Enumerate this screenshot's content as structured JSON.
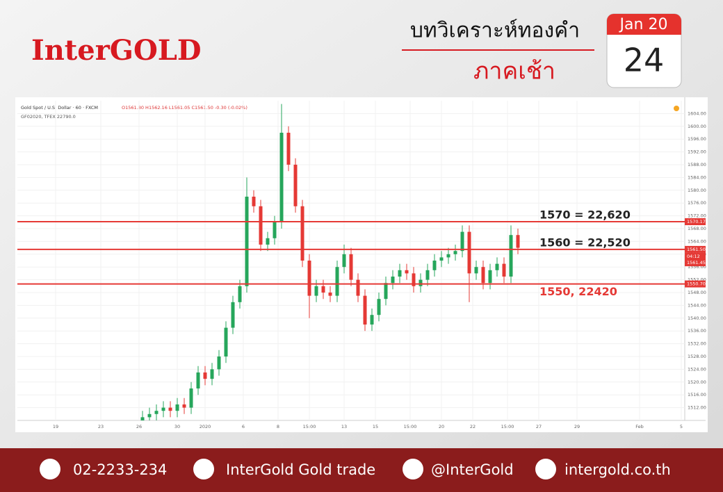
{
  "header": {
    "brand": "InterGOLD",
    "title": "บทวิเคราะห์ทองคำ",
    "subtitle": "ภาคเช้า",
    "month": "Jan 20",
    "day": "24"
  },
  "chart_data": {
    "type": "candlestick",
    "title": "Gold Spot / U.S. Dollar · 60 · FXCM",
    "quote": "O1561.80 H1562.16 L1561.05 C1561.50 -0.30 (-0.02%)",
    "subtitle": "GF02020, TFEX 22790.0",
    "x": [
      36,
      38,
      40,
      42,
      44,
      46,
      48,
      50,
      52,
      54,
      56,
      58,
      60,
      62,
      64,
      66,
      68,
      70,
      72,
      74,
      76,
      78,
      80,
      82,
      84,
      86,
      88,
      90,
      92,
      94,
      96,
      98,
      100,
      102,
      104,
      106,
      108,
      110,
      112,
      114,
      116,
      118,
      120,
      122,
      124,
      126,
      128,
      130,
      132,
      134,
      136,
      138,
      140,
      142,
      144
    ],
    "open": [
      1507,
      1509,
      1510,
      1511,
      1512,
      1511,
      1513,
      1512,
      1518,
      1523,
      1521,
      1524,
      1528,
      1537,
      1545,
      1550,
      1578,
      1575,
      1563,
      1565,
      1570,
      1598,
      1588,
      1575,
      1558,
      1547,
      1550,
      1548,
      1547,
      1556,
      1560,
      1552,
      1547,
      1538,
      1541,
      1546,
      1551,
      1553,
      1555,
      1554,
      1550,
      1552,
      1555,
      1558,
      1559,
      1560,
      1561,
      1567,
      1554,
      1556,
      1551,
      1555,
      1557,
      1553,
      1566
    ],
    "high": [
      1511,
      1512,
      1513,
      1514,
      1514,
      1515,
      1515,
      1520,
      1525,
      1525,
      1526,
      1530,
      1539,
      1547,
      1552,
      1584,
      1580,
      1577,
      1567,
      1572,
      1607,
      1600,
      1590,
      1577,
      1560,
      1552,
      1552,
      1550,
      1558,
      1563,
      1562,
      1554,
      1549,
      1543,
      1548,
      1553,
      1555,
      1557,
      1557,
      1556,
      1554,
      1557,
      1560,
      1561,
      1562,
      1563,
      1569,
      1569,
      1558,
      1558,
      1557,
      1559,
      1559,
      1569,
      1568
    ],
    "low": [
      1505,
      1507,
      1508,
      1509,
      1509,
      1509,
      1510,
      1510,
      1516,
      1519,
      1519,
      1522,
      1526,
      1535,
      1543,
      1548,
      1573,
      1561,
      1561,
      1563,
      1568,
      1586,
      1573,
      1556,
      1540,
      1545,
      1546,
      1545,
      1545,
      1554,
      1550,
      1545,
      1536,
      1536,
      1539,
      1544,
      1549,
      1551,
      1552,
      1548,
      1548,
      1550,
      1553,
      1556,
      1557,
      1558,
      1559,
      1545,
      1552,
      1549,
      1549,
      1553,
      1551,
      1551,
      1560
    ],
    "close": [
      1509,
      1510,
      1511,
      1512,
      1511,
      1513,
      1512,
      1518,
      1523,
      1521,
      1524,
      1528,
      1537,
      1545,
      1550,
      1578,
      1575,
      1563,
      1565,
      1570,
      1598,
      1588,
      1575,
      1558,
      1547,
      1550,
      1548,
      1547,
      1556,
      1560,
      1552,
      1547,
      1538,
      1541,
      1546,
      1551,
      1553,
      1555,
      1554,
      1550,
      1552,
      1555,
      1558,
      1559,
      1560,
      1561,
      1567,
      1554,
      1556,
      1551,
      1555,
      1557,
      1553,
      1566,
      1562
    ],
    "up_color": "#26a65b",
    "down_color": "#e53935",
    "xlim": [
      0,
      192
    ],
    "xticks": [
      {
        "value": 11,
        "label": "19"
      },
      {
        "value": 24,
        "label": "23"
      },
      {
        "value": 35,
        "label": "26"
      },
      {
        "value": 46,
        "label": "30"
      },
      {
        "value": 54,
        "label": "2020"
      },
      {
        "value": 65,
        "label": "6"
      },
      {
        "value": 75,
        "label": "8"
      },
      {
        "value": 84,
        "label": "15:00"
      },
      {
        "value": 94,
        "label": "13"
      },
      {
        "value": 103,
        "label": "15"
      },
      {
        "value": 113,
        "label": "15:00"
      },
      {
        "value": 122,
        "label": "20"
      },
      {
        "value": 131,
        "label": "22"
      },
      {
        "value": 141,
        "label": "15:00"
      },
      {
        "value": 150,
        "label": "27"
      },
      {
        "value": 161,
        "label": "29"
      },
      {
        "value": 179,
        "label": "Feb"
      },
      {
        "value": 191,
        "label": "5"
      }
    ],
    "ylim": [
      1508,
      1608
    ],
    "yticks": [
      {
        "value": 1512,
        "label": "1512.00"
      },
      {
        "value": 1516,
        "label": "1516.00"
      },
      {
        "value": 1520,
        "label": "1520.00"
      },
      {
        "value": 1524,
        "label": "1524.00"
      },
      {
        "value": 1528,
        "label": "1528.00"
      },
      {
        "value": 1532,
        "label": "1532.00"
      },
      {
        "value": 1536,
        "label": "1536.00"
      },
      {
        "value": 1540,
        "label": "1540.00"
      },
      {
        "value": 1544,
        "label": "1544.00"
      },
      {
        "value": 1548,
        "label": "1548.00"
      },
      {
        "value": 1552,
        "label": "1552.00"
      },
      {
        "value": 1556,
        "label": "1556.00"
      },
      {
        "value": 1560,
        "label": "1560.00"
      },
      {
        "value": 1564,
        "label": "1564.00"
      },
      {
        "value": 1568,
        "label": "1568.00"
      },
      {
        "value": 1572,
        "label": "1572.00"
      },
      {
        "value": 1576,
        "label": "1576.00"
      },
      {
        "value": 1580,
        "label": "1580.00"
      },
      {
        "value": 1584,
        "label": "1584.00"
      },
      {
        "value": 1588,
        "label": "1588.00"
      },
      {
        "value": 1592,
        "label": "1592.00"
      },
      {
        "value": 1596,
        "label": "1596.00"
      },
      {
        "value": 1600,
        "label": "1600.00"
      },
      {
        "value": 1604,
        "label": "1604.00"
      }
    ],
    "grid": true,
    "levels": [
      {
        "value": 1570.17,
        "label": "1570.17",
        "note": "1570 = 22,620",
        "note_color": "#222222"
      },
      {
        "value": 1561.5,
        "label": "1561.50",
        "note": "1560 = 22,520",
        "note_color": "#222222"
      },
      {
        "value": 1550.7,
        "label": "1550.70",
        "note": "1550,  22420",
        "note_color": "#e53935"
      }
    ],
    "level_color": "#e53935",
    "price_tag": {
      "value": 1561.45,
      "label": "1561.45"
    },
    "countdown": "04:12"
  },
  "footer": {
    "phone": "02-2233-234",
    "facebook": "InterGold Gold trade",
    "line": "@InterGold",
    "web": "intergold.co.th"
  }
}
